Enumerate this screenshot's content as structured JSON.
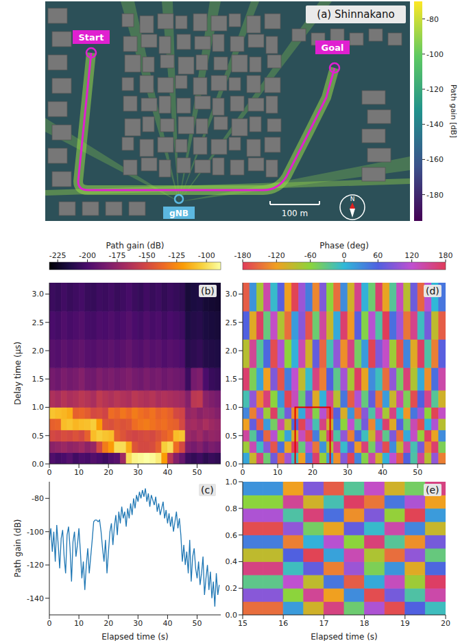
{
  "chart_data": [
    {
      "type": "map",
      "title": "(a) Shinnakano",
      "labels": {
        "start": "Start",
        "goal": "Goal",
        "base_station": "gNB",
        "scale_bar": "100 m",
        "north": "N"
      },
      "colorbar": {
        "label": "Path gain [dB]",
        "range": [
          -195,
          -70
        ],
        "ticks": [
          -80,
          -100,
          -120,
          -140,
          -160,
          -180
        ]
      }
    },
    {
      "type": "heatmap",
      "title": "(b)",
      "ylabel": "Delay time (µs)",
      "x_bins": [
        0,
        2,
        4,
        6,
        8,
        10,
        12,
        14,
        16,
        18,
        20,
        22,
        24,
        26,
        28,
        30,
        32,
        34,
        36,
        38,
        40,
        42,
        44,
        46,
        48,
        50,
        52,
        54,
        56,
        58
      ],
      "y_bins": [
        0,
        0.2,
        0.4,
        0.6,
        0.8,
        1,
        1.3,
        1.7,
        2.2,
        2.7,
        3.2
      ],
      "cells": [
        [
          -198,
          -202,
          -200,
          -196,
          -203,
          -199,
          -201,
          -197,
          -200,
          -204,
          -198,
          -195,
          -170,
          -100,
          -92,
          -90,
          -88,
          -90,
          -95,
          -120,
          -160,
          -180,
          -190,
          -205,
          -208,
          -204,
          -210,
          -206,
          -209
        ],
        [
          -178,
          -175,
          -172,
          -176,
          -174,
          -170,
          -177,
          -173,
          -150,
          -130,
          -120,
          -100,
          -100,
          -115,
          -145,
          -150,
          -150,
          -148,
          -140,
          -105,
          -100,
          -135,
          -150,
          -182,
          -185,
          -180,
          -188,
          -183,
          -186
        ],
        [
          -150,
          -152,
          -148,
          -150,
          -146,
          -150,
          -140,
          -110,
          -105,
          -108,
          -110,
          -140,
          -145,
          -150,
          -152,
          -150,
          -148,
          -150,
          -145,
          -140,
          -135,
          -110,
          -108,
          -172,
          -175,
          -170,
          -178,
          -174,
          -176
        ],
        [
          -140,
          -138,
          -110,
          -108,
          -112,
          -110,
          -109,
          -105,
          -120,
          -145,
          -147,
          -143,
          -146,
          -144,
          -135,
          -132,
          -130,
          -133,
          -136,
          -134,
          -138,
          -140,
          -150,
          -170,
          -168,
          -172,
          -166,
          -171,
          -174
        ],
        [
          -108,
          -110,
          -112,
          -115,
          -140,
          -138,
          -142,
          -150,
          -148,
          -152,
          -135,
          -138,
          -132,
          -136,
          -130,
          -134,
          -137,
          -133,
          -139,
          -136,
          -140,
          -150,
          -152,
          -175,
          -172,
          -178,
          -174,
          -176,
          -180
        ],
        [
          -165,
          -168,
          -162,
          -166,
          -164,
          -160,
          -163,
          -167,
          -158,
          -162,
          -165,
          -161,
          -164,
          -166,
          -160,
          -163,
          -165,
          -162,
          -167,
          -164,
          -166,
          -168,
          -170,
          -180,
          -160,
          -158,
          -178,
          -182,
          -185
        ],
        [
          -185,
          -188,
          -183,
          -186,
          -184,
          -180,
          -186,
          -187,
          -182,
          -185,
          -183,
          -186,
          -184,
          -181,
          -185,
          -187,
          -183,
          -186,
          -184,
          -188,
          -185,
          -187,
          -189,
          -205,
          -185,
          -182,
          -200,
          -206,
          -208
        ],
        [
          -195,
          -197,
          -193,
          -196,
          -194,
          -192,
          -196,
          -197,
          -194,
          -195,
          -193,
          -196,
          -194,
          -191,
          -195,
          -197,
          -193,
          -196,
          -194,
          -198,
          -195,
          -197,
          -199,
          -212,
          -210,
          -208,
          -213,
          -214,
          -215
        ],
        [
          -200,
          -202,
          -198,
          -201,
          -199,
          -197,
          -201,
          -202,
          -199,
          -200,
          -198,
          -201,
          -199,
          -196,
          -200,
          -202,
          -198,
          -201,
          -199,
          -203,
          -200,
          -202,
          -204,
          -215,
          -213,
          -212,
          -216,
          -217,
          -218
        ],
        [
          -205,
          -207,
          -203,
          -206,
          -204,
          -202,
          -206,
          -207,
          -204,
          -205,
          -203,
          -206,
          -204,
          -201,
          -205,
          -207,
          -203,
          -206,
          -204,
          -208,
          -205,
          -207,
          -209,
          -218,
          -216,
          -215,
          -219,
          -220,
          -221
        ]
      ],
      "xlim": [
        0,
        58
      ],
      "xticks": [
        0,
        10,
        20,
        30,
        40,
        50
      ],
      "ylim": [
        0,
        3.2
      ],
      "yticks": [
        {
          "value": 0,
          "label": "0.0"
        },
        0.5,
        {
          "value": 1,
          "label": "1.0"
        },
        1.5,
        {
          "value": 2,
          "label": "2.0"
        },
        2.5,
        {
          "value": 3,
          "label": "3.0"
        }
      ],
      "colorbar": {
        "label": "Path gain (dB)",
        "range": [
          -232,
          -88
        ],
        "ticks": [
          -225,
          -200,
          -175,
          -150,
          -125,
          -100
        ]
      }
    },
    {
      "type": "line",
      "title": "(c)",
      "xlabel": "Elapsed time (s)",
      "ylabel": "Path gain (dB)",
      "color": "#1f77b4",
      "x": [
        0,
        0.5,
        1,
        1.5,
        2,
        2.5,
        3,
        3.5,
        4,
        4.5,
        5,
        5.5,
        6,
        6.5,
        7,
        7.5,
        8,
        8.5,
        9,
        9.5,
        10,
        10.5,
        11,
        11.5,
        12,
        12.5,
        13,
        13.5,
        14,
        14.5,
        15,
        15.5,
        16,
        16.5,
        17,
        17.5,
        18,
        18.5,
        19,
        19.5,
        20,
        20.5,
        21,
        21.5,
        22,
        22.5,
        23,
        23.5,
        24,
        24.5,
        25,
        25.5,
        26,
        26.5,
        27,
        27.5,
        28,
        28.5,
        29,
        29.5,
        30,
        30.5,
        31,
        31.5,
        32,
        32.5,
        33,
        33.5,
        34,
        34.5,
        35,
        35.5,
        36,
        36.5,
        37,
        37.5,
        38,
        38.5,
        39,
        39.5,
        40,
        40.5,
        41,
        41.5,
        42,
        42.5,
        43,
        43.5,
        44,
        44.5,
        45,
        45.5,
        46,
        46.5,
        47,
        47.5,
        48,
        48.5,
        49,
        49.5,
        50,
        50.5,
        51,
        51.5,
        52,
        52.5,
        53,
        53.5,
        54,
        54.5,
        55,
        55.5,
        56,
        56.5,
        57,
        57.5
      ],
      "values": [
        -105,
        -98,
        -112,
        -100,
        -118,
        -96,
        -108,
        -122,
        -104,
        -99,
        -115,
        -125,
        -102,
        -97,
        -110,
        -130,
        -106,
        -100,
        -115,
        -108,
        -98,
        -112,
        -128,
        -118,
        -135,
        -120,
        -110,
        -125,
        -115,
        -105,
        -94,
        -93,
        -93,
        -94,
        -93,
        -100,
        -110,
        -118,
        -105,
        -125,
        -112,
        -100,
        -95,
        -108,
        -97,
        -90,
        -102,
        -88,
        -95,
        -85,
        -92,
        -88,
        -97,
        -86,
        -92,
        -83,
        -90,
        -80,
        -86,
        -78,
        -82,
        -76,
        -80,
        -75,
        -79,
        -74,
        -82,
        -77,
        -85,
        -78,
        -81,
        -84,
        -79,
        -88,
        -83,
        -90,
        -86,
        -82,
        -92,
        -87,
        -95,
        -89,
        -97,
        -91,
        -100,
        -94,
        -88,
        -98,
        -92,
        -102,
        -118,
        -108,
        -120,
        -112,
        -125,
        -105,
        -130,
        -115,
        -110,
        -122,
        -128,
        -118,
        -132,
        -125,
        -115,
        -138,
        -128,
        -120,
        -135,
        -124,
        -140,
        -130,
        -145,
        -125,
        -138,
        -132
      ],
      "xlim": [
        0,
        58
      ],
      "xticks": [
        0,
        10,
        20,
        30,
        40,
        50
      ],
      "ylim": [
        -150,
        -70
      ],
      "yticks": [
        -140,
        -120,
        -100,
        -80
      ]
    },
    {
      "type": "heatmap",
      "title": "(d)",
      "x_bins": [
        0,
        2,
        4,
        6,
        8,
        10,
        12,
        14,
        16,
        18,
        20,
        22,
        24,
        26,
        28,
        30,
        32,
        34,
        36,
        38,
        40,
        42,
        44,
        46,
        48,
        50,
        52,
        54,
        56,
        58
      ],
      "y_bins": [
        0,
        0.2,
        0.4,
        0.6,
        0.8,
        1,
        1.3,
        1.7,
        2.2,
        2.7,
        3.2
      ],
      "cells": [
        [
          12,
          -95,
          160,
          -40,
          77,
          -150,
          103,
          -8,
          -120,
          45,
          170,
          -66,
          20,
          -130,
          88,
          -175,
          35,
          -55,
          140,
          -100,
          5,
          120,
          -160,
          60,
          -20,
          150,
          -85,
          95,
          -140
        ],
        [
          -70,
          135,
          -10,
          90,
          -165,
          50,
          -115,
          175,
          -35,
          110,
          -145,
          25,
          -80,
          155,
          -5,
          70,
          -125,
          165,
          -45,
          100,
          -170,
          30,
          -90,
          145,
          -15,
          80,
          -135,
          170,
          -50
        ],
        [
          145,
          -25,
          60,
          -155,
          115,
          -60,
          15,
          -105,
          130,
          -170,
          40,
          -75,
          165,
          -20,
          95,
          -140,
          55,
          -10,
          -95,
          150,
          -30,
          85,
          -150,
          10,
          125,
          -65,
          175,
          -115,
          30
        ],
        [
          -120,
          70,
          -160,
          20,
          -45,
          140,
          -90,
          55,
          -175,
          105,
          -15,
          160,
          -100,
          45,
          -60,
          120,
          -30,
          80,
          -135,
          15,
          170,
          -110,
          65,
          -40,
          135,
          -170,
          5,
          110,
          -85
        ],
        [
          35,
          -140,
          100,
          -70,
          175,
          -25,
          80,
          -130,
          10,
          150,
          -55,
          115,
          -165,
          65,
          -105,
          25,
          -150,
          90,
          -20,
          135,
          -75,
          160,
          -5,
          -125,
          45,
          100,
          -60,
          -175,
          125
        ],
        [
          -15,
          95,
          -135,
          165,
          -60,
          25,
          -175,
          130,
          -40,
          75,
          -110,
          5,
          150,
          -85,
          45,
          -160,
          110,
          -35,
          70,
          -145,
          20,
          -95,
          140,
          -50,
          -170,
          60,
          155,
          -25,
          -100
        ],
        [
          170,
          -50,
          15,
          -120,
          85,
          -165,
          40,
          120,
          -90,
          -5,
          160,
          -140,
          60,
          -30,
          105,
          -75,
          175,
          -115,
          30,
          -10,
          -150,
          95,
          -45,
          165,
          -80,
          10,
          -130,
          50,
          140
        ],
        [
          -85,
          150,
          -25,
          55,
          -170,
          110,
          -60,
          5,
          135,
          -100,
          70,
          -155,
          -15,
          95,
          -130,
          160,
          -45,
          20,
          -175,
          85,
          125,
          -70,
          -165,
          35,
          -110,
          175,
          -20,
          -140,
          65
        ],
        [
          60,
          -110,
          175,
          -35,
          125,
          -80,
          -150,
          20,
          90,
          -165,
          -40,
          145,
          -95,
          10,
          170,
          -125,
          65,
          -55,
          115,
          -20,
          -180,
          50,
          105,
          -145,
          155,
          -10,
          80,
          -90,
          -160
        ],
        [
          -160,
          25,
          -75,
          140,
          -5,
          65,
          -120,
          -175,
          100,
          40,
          -135,
          85,
          -60,
          -150,
          30,
          -100,
          155,
          5,
          -40,
          170,
          -115,
          -25,
          130,
          -85,
          75,
          -155,
          115,
          0,
          45
        ]
      ],
      "xlim": [
        0,
        58
      ],
      "xticks": [
        0,
        10,
        20,
        30,
        40,
        50
      ],
      "ylim": [
        0,
        3.2
      ],
      "yticks": [
        {
          "value": 0,
          "label": "0.0"
        },
        0.5,
        {
          "value": 1,
          "label": "1.0"
        },
        1.5,
        {
          "value": 2,
          "label": "2.0"
        },
        2.5,
        {
          "value": 3,
          "label": "3.0"
        }
      ],
      "colorbar": {
        "label": "Phase (deg)",
        "range": [
          -180,
          180
        ],
        "ticks": [
          -180,
          -120,
          -60,
          0,
          60,
          120,
          180
        ]
      },
      "zoom_box": {
        "x": [
          15,
          25
        ],
        "y": [
          0,
          1
        ]
      }
    },
    {
      "type": "heatmap",
      "title": "(e)",
      "xlabel": "Elapsed time (s)",
      "x_bins": [
        15,
        15.5,
        16,
        16.5,
        17,
        17.5,
        18,
        18.5,
        19,
        19.5,
        20
      ],
      "y_bins": [
        0,
        0.1,
        0.2,
        0.3,
        0.4,
        0.5,
        0.6,
        0.7,
        0.8,
        0.9,
        1
      ],
      "cells": [
        [
          -150,
          -150,
          20,
          -100,
          160,
          -40,
          110,
          -170,
          60,
          -10
        ],
        [
          90,
          90,
          -60,
          150,
          -120,
          30,
          -170,
          80,
          -20,
          140
        ],
        [
          -30,
          -30,
          120,
          -90,
          45,
          -160,
          10,
          130,
          -70,
          175
        ],
        [
          160,
          160,
          -10,
          70,
          -140,
          100,
          -50,
          25,
          -110,
          55
        ],
        [
          -90,
          -90,
          60,
          -175,
          15,
          135,
          -80,
          -150,
          95,
          -35
        ],
        [
          40,
          40,
          -140,
          5,
          115,
          -60,
          165,
          -25,
          -130,
          80
        ],
        [
          -170,
          -170,
          95,
          -45,
          -115,
          70,
          -5,
          140,
          35,
          -95
        ],
        [
          110,
          110,
          -20,
          165,
          50,
          -130,
          85,
          -65,
          -175,
          20
        ],
        [
          -60,
          -60,
          150,
          -100,
          -15,
          175,
          -145,
          45,
          110,
          -120
        ],
        [
          25,
          25,
          -120,
          85,
          -160,
          -25,
          125,
          -100,
          -45,
          160
        ]
      ],
      "xlim": [
        15,
        20
      ],
      "xticks": [
        15,
        16,
        17,
        18,
        19,
        20
      ],
      "ylim": [
        0,
        1
      ],
      "yticks": [
        {
          "value": 0,
          "label": "0.0"
        },
        0.2,
        0.4,
        0.6,
        0.8,
        {
          "value": 1,
          "label": "1.0"
        }
      ]
    }
  ]
}
